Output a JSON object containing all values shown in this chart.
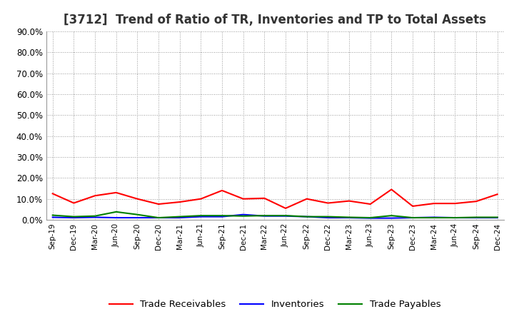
{
  "title": "[3712]  Trend of Ratio of TR, Inventories and TP to Total Assets",
  "title_fontsize": 12,
  "title_color": "#333333",
  "ylim": [
    0.0,
    0.9
  ],
  "yticks": [
    0.0,
    0.1,
    0.2,
    0.3,
    0.4,
    0.5,
    0.6,
    0.7,
    0.8,
    0.9
  ],
  "x_labels": [
    "Sep-19",
    "Dec-19",
    "Mar-20",
    "Jun-20",
    "Sep-20",
    "Dec-20",
    "Mar-21",
    "Jun-21",
    "Sep-21",
    "Dec-21",
    "Mar-22",
    "Jun-22",
    "Sep-22",
    "Dec-22",
    "Mar-23",
    "Jun-23",
    "Sep-23",
    "Dec-23",
    "Mar-24",
    "Jun-24",
    "Sep-24",
    "Dec-24"
  ],
  "trade_receivables": [
    0.125,
    0.08,
    0.115,
    0.13,
    0.1,
    0.075,
    0.085,
    0.1,
    0.14,
    0.1,
    0.103,
    0.055,
    0.1,
    0.08,
    0.09,
    0.075,
    0.145,
    0.065,
    0.078,
    0.078,
    0.088,
    0.122
  ],
  "inventories": [
    0.012,
    0.01,
    0.012,
    0.01,
    0.01,
    0.01,
    0.01,
    0.015,
    0.015,
    0.025,
    0.018,
    0.018,
    0.015,
    0.01,
    0.01,
    0.008,
    0.008,
    0.01,
    0.012,
    0.01,
    0.01,
    0.01
  ],
  "trade_payables": [
    0.022,
    0.015,
    0.018,
    0.038,
    0.025,
    0.01,
    0.015,
    0.02,
    0.02,
    0.018,
    0.02,
    0.02,
    0.015,
    0.015,
    0.012,
    0.01,
    0.02,
    0.01,
    0.01,
    0.01,
    0.012,
    0.012
  ],
  "tr_color": "#FF0000",
  "inv_color": "#0000FF",
  "tp_color": "#008000",
  "grid_color": "#999999",
  "background_color": "#FFFFFF",
  "legend_labels": [
    "Trade Receivables",
    "Inventories",
    "Trade Payables"
  ]
}
